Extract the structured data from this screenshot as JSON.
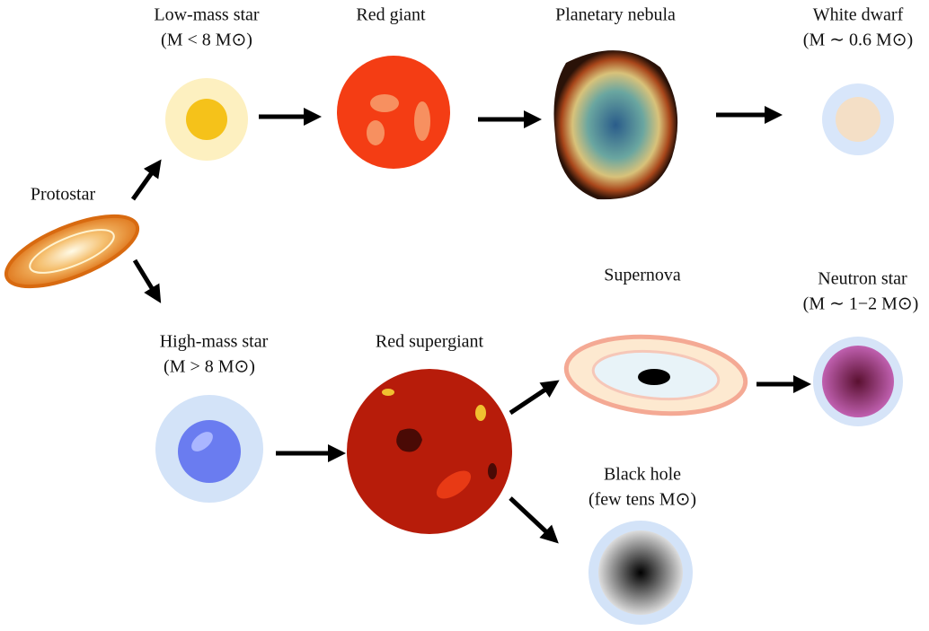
{
  "nodes": [
    {
      "label": "Protostar"
    },
    {
      "label": "Low-mass star",
      "sublabel": "(M < 8 M⊙)"
    },
    {
      "label": "Red giant"
    },
    {
      "label": "Planetary nebula"
    },
    {
      "label": "White dwarf",
      "sublabel": "(M ∼ 0.6 M⊙)"
    },
    {
      "label": "High-mass star",
      "sublabel": "(M > 8 M⊙)"
    },
    {
      "label": "Red supergiant"
    },
    {
      "label": "Supernova"
    },
    {
      "label": "Neutron star",
      "sublabel": "(M ∼ 1−2 M⊙)"
    },
    {
      "label": "Black hole",
      "sublabel": "(few tens M⊙)"
    }
  ]
}
